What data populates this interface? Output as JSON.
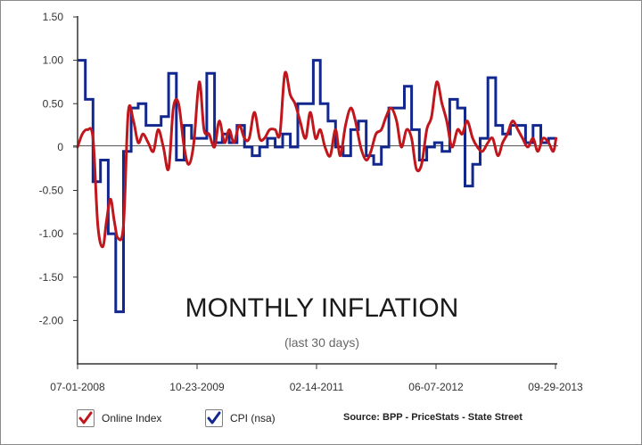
{
  "chart_data": {
    "type": "line",
    "title": "MONTHLY INFLATION",
    "subtitle": "(last 30 days)",
    "source": "Source: BPP - PriceStats - State Street",
    "xlabel": "",
    "ylabel": "",
    "ylim": [
      -2.5,
      1.5
    ],
    "y_ticks": [
      "1.50",
      "1.00",
      "0.50",
      "0",
      "-0.50",
      "-1.00",
      "-1.50",
      "-2.00"
    ],
    "x_tick_labels": [
      "07-01-2008",
      "10-23-2009",
      "02-14-2011",
      "06-07-2012",
      "09-29-2013"
    ],
    "grid": "none",
    "legend_position": "bottom-left",
    "series": [
      {
        "name": "Online Index",
        "color": "#c0161c",
        "style": "smooth",
        "x": [
          "2008-07-01",
          "2008-07-20",
          "2008-08-10",
          "2008-09-01",
          "2008-09-20",
          "2008-10-10",
          "2008-10-25",
          "2008-11-10",
          "2008-11-25",
          "2008-12-10",
          "2009-01-01",
          "2009-01-20",
          "2009-02-10",
          "2009-03-01",
          "2009-03-20",
          "2009-04-10",
          "2009-05-01",
          "2009-05-20",
          "2009-06-10",
          "2009-07-01",
          "2009-07-20",
          "2009-08-10",
          "2009-09-01",
          "2009-09-20",
          "2009-10-10",
          "2009-11-01",
          "2009-11-20",
          "2009-12-10",
          "2010-01-01",
          "2010-01-20",
          "2010-02-10",
          "2010-03-01",
          "2010-03-20",
          "2010-04-10",
          "2010-05-01",
          "2010-05-20",
          "2010-06-10",
          "2010-07-01",
          "2010-07-20",
          "2010-08-10",
          "2010-09-01",
          "2010-09-20",
          "2010-10-10",
          "2010-11-01",
          "2010-11-20",
          "2010-12-10",
          "2011-01-01",
          "2011-01-20",
          "2011-02-10",
          "2011-03-01",
          "2011-03-20",
          "2011-04-10",
          "2011-05-01",
          "2011-05-20",
          "2011-06-10",
          "2011-07-01",
          "2011-07-20",
          "2011-08-10",
          "2011-09-01",
          "2011-09-20",
          "2011-10-10",
          "2011-11-01",
          "2011-11-20",
          "2011-12-10",
          "2012-01-01",
          "2012-01-20",
          "2012-02-10",
          "2012-03-01",
          "2012-03-20",
          "2012-04-10",
          "2012-05-01",
          "2012-05-20",
          "2012-06-10",
          "2012-07-01",
          "2012-07-20",
          "2012-08-10",
          "2012-09-01",
          "2012-09-20",
          "2012-10-10",
          "2012-11-01",
          "2012-11-20",
          "2012-12-10",
          "2013-01-01",
          "2013-01-20",
          "2013-02-10",
          "2013-03-01",
          "2013-03-20",
          "2013-04-10",
          "2013-05-01",
          "2013-05-20",
          "2013-06-10",
          "2013-07-01",
          "2013-07-20",
          "2013-08-10",
          "2013-09-01",
          "2013-09-20",
          "2013-10-01"
        ],
        "values": [
          0.0,
          0.15,
          0.2,
          0.1,
          -0.9,
          -1.15,
          -0.85,
          -0.6,
          -0.85,
          -1.05,
          -0.9,
          0.4,
          0.3,
          0.05,
          0.15,
          0.05,
          -0.05,
          0.2,
          0.0,
          -0.25,
          0.45,
          0.5,
          0.0,
          -0.2,
          0.05,
          0.75,
          0.2,
          0.15,
          0.0,
          0.3,
          0.05,
          0.2,
          0.05,
          0.25,
          0.1,
          0.1,
          0.4,
          0.1,
          0.1,
          0.2,
          0.2,
          0.15,
          0.85,
          0.6,
          0.5,
          0.3,
          0.1,
          0.4,
          0.1,
          0.2,
          0.0,
          -0.1,
          0.2,
          -0.1,
          0.25,
          0.45,
          0.3,
          0.0,
          -0.15,
          -0.05,
          0.15,
          0.2,
          0.35,
          0.45,
          0.3,
          0.0,
          0.2,
          0.1,
          -0.25,
          -0.2,
          0.2,
          0.35,
          0.75,
          0.5,
          0.3,
          0.0,
          0.2,
          0.15,
          0.3,
          0.1,
          0.0,
          -0.05,
          0.05,
          0.1,
          -0.1,
          0.05,
          0.15,
          0.3,
          0.2,
          0.1,
          0.0,
          0.1,
          -0.05,
          0.1,
          0.05,
          -0.05,
          0.1
        ]
      },
      {
        "name": "CPI (nsa)",
        "color": "#13288f",
        "style": "step",
        "x": [
          "2008-07-01",
          "2008-08-01",
          "2008-09-01",
          "2008-10-01",
          "2008-11-01",
          "2008-12-01",
          "2009-01-01",
          "2009-02-01",
          "2009-03-01",
          "2009-04-01",
          "2009-05-01",
          "2009-06-01",
          "2009-07-01",
          "2009-08-01",
          "2009-09-01",
          "2009-10-01",
          "2009-11-01",
          "2009-12-01",
          "2010-01-01",
          "2010-02-01",
          "2010-03-01",
          "2010-04-01",
          "2010-05-01",
          "2010-06-01",
          "2010-07-01",
          "2010-08-01",
          "2010-09-01",
          "2010-10-01",
          "2010-11-01",
          "2010-12-01",
          "2011-01-01",
          "2011-02-01",
          "2011-03-01",
          "2011-04-01",
          "2011-05-01",
          "2011-06-01",
          "2011-07-01",
          "2011-08-01",
          "2011-09-01",
          "2011-10-01",
          "2011-11-01",
          "2011-12-01",
          "2012-01-01",
          "2012-02-01",
          "2012-03-01",
          "2012-04-01",
          "2012-05-01",
          "2012-06-01",
          "2012-07-01",
          "2012-08-01",
          "2012-09-01",
          "2012-10-01",
          "2012-11-01",
          "2012-12-01",
          "2013-01-01",
          "2013-02-01",
          "2013-03-01",
          "2013-04-01",
          "2013-05-01",
          "2013-06-01",
          "2013-07-01",
          "2013-08-01",
          "2013-09-01"
        ],
        "values": [
          1.0,
          0.55,
          -0.4,
          -0.15,
          -1.0,
          -1.9,
          -0.05,
          0.45,
          0.5,
          0.25,
          0.25,
          0.35,
          0.85,
          -0.15,
          0.25,
          0.1,
          0.1,
          0.85,
          0.05,
          0.15,
          0.05,
          0.25,
          0.0,
          -0.1,
          0.0,
          0.1,
          0.0,
          0.15,
          0.0,
          0.5,
          0.5,
          1.0,
          0.5,
          0.3,
          0.0,
          -0.1,
          0.2,
          0.3,
          -0.1,
          -0.2,
          0.0,
          0.45,
          0.45,
          0.7,
          0.2,
          -0.15,
          0.0,
          0.05,
          -0.05,
          0.55,
          0.45,
          -0.45,
          -0.2,
          0.1,
          0.8,
          0.25,
          0.15,
          0.25,
          0.25,
          0.05,
          0.25,
          0.05,
          0.1
        ]
      }
    ]
  }
}
